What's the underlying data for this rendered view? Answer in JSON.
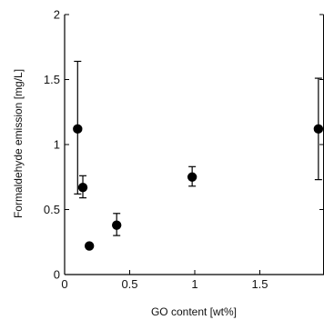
{
  "chart_data": {
    "type": "scatter",
    "title": "",
    "xlabel": "GO content [wt%]",
    "ylabel": "Formaldehyde emission [mg/L]",
    "xlim": [
      0,
      2
    ],
    "ylim": [
      0,
      2
    ],
    "xticks": [
      0,
      0.5,
      1,
      1.5
    ],
    "xtick_labels": [
      "0",
      "0.5",
      "1",
      "1.5"
    ],
    "yticks": [
      0,
      0.5,
      1,
      1.5,
      2
    ],
    "ytick_labels": [
      "0",
      "0.5",
      "1",
      "1.5",
      "2"
    ],
    "grid": false,
    "legend": "none",
    "marker_color": "#000000",
    "series": [
      {
        "points": [
          {
            "x": 0.1,
            "y": 1.12,
            "yerr_low": 0.5,
            "yerr_high": 0.52
          },
          {
            "x": 0.14,
            "y": 0.67,
            "yerr_low": 0.08,
            "yerr_high": 0.09
          },
          {
            "x": 0.19,
            "y": 0.22,
            "yerr_low": 0,
            "yerr_high": 0
          },
          {
            "x": 0.4,
            "y": 0.38,
            "yerr_low": 0.08,
            "yerr_high": 0.09
          },
          {
            "x": 0.98,
            "y": 0.75,
            "yerr_low": 0.07,
            "yerr_high": 0.08
          },
          {
            "x": 1.95,
            "y": 1.12,
            "yerr_low": 0.39,
            "yerr_high": 0.39
          }
        ]
      }
    ]
  }
}
